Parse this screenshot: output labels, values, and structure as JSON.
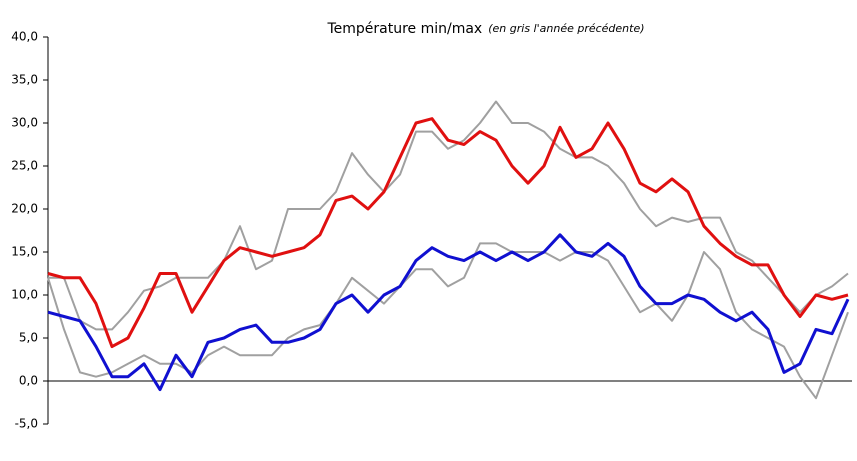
{
  "chart_data": {
    "type": "line",
    "title": "Température min/max",
    "subtitle": "(en gris l'année précédente)",
    "categories": [
      null,
      null,
      null,
      null,
      null,
      null,
      null,
      null,
      null,
      null,
      null,
      null,
      null,
      null,
      null,
      null,
      null,
      null,
      null,
      null,
      null,
      null,
      null,
      null,
      null,
      null,
      null,
      null,
      null,
      null,
      null,
      null,
      null,
      null,
      null,
      null,
      null,
      null,
      null,
      null,
      null,
      null,
      null,
      null,
      null,
      null,
      null,
      null,
      null,
      null,
      null
    ],
    "ylim": [
      -5,
      40
    ],
    "yticks": [
      {
        "value": -5,
        "label": "-5,0"
      },
      {
        "value": 0,
        "label": "0,0"
      },
      {
        "value": 5,
        "label": "5,0"
      },
      {
        "value": 10,
        "label": "10,0"
      },
      {
        "value": 15,
        "label": "15,0"
      },
      {
        "value": 20,
        "label": "20,0"
      },
      {
        "value": 25,
        "label": "25,0"
      },
      {
        "value": 30,
        "label": "30,0"
      },
      {
        "value": 35,
        "label": "35,0"
      },
      {
        "value": 40,
        "label": "40,0"
      }
    ],
    "series": [
      {
        "color": "#a0a0a0",
        "values": [
          12,
          12,
          7,
          6,
          6,
          8,
          10.5,
          11,
          12,
          12,
          12,
          14,
          18,
          13,
          14,
          20,
          20,
          20,
          22,
          26.5,
          24,
          22,
          24,
          29,
          29,
          27,
          28,
          30,
          32.5,
          30,
          30,
          29,
          27,
          26,
          26,
          25,
          23,
          20,
          18,
          19,
          18.5,
          19,
          19,
          15,
          14,
          12,
          10,
          8,
          10,
          11,
          12.5
        ]
      },
      {
        "color": "#a0a0a0",
        "values": [
          12,
          6,
          1,
          0.5,
          1,
          2,
          3,
          2,
          2,
          1,
          3,
          4,
          3,
          3,
          3,
          5,
          6,
          6.5,
          9,
          12,
          10.5,
          9,
          11,
          13,
          13,
          11,
          12,
          16,
          16,
          15,
          15,
          15,
          14,
          15,
          15,
          14,
          11,
          8,
          9,
          7,
          10,
          15,
          13,
          8,
          6,
          5,
          4,
          0.5,
          -2,
          3,
          8
        ]
      },
      {
        "color": "#e01010",
        "values": [
          12.5,
          12,
          12,
          9,
          4,
          5,
          8.5,
          12.5,
          12.5,
          8,
          11,
          14,
          15.5,
          15,
          14.5,
          15,
          15.5,
          17,
          21,
          21.5,
          20,
          22,
          26,
          30,
          30.5,
          28,
          27.5,
          29,
          28,
          25,
          23,
          25,
          29.5,
          26,
          27,
          30,
          27,
          23,
          22,
          23.5,
          22,
          18,
          16,
          14.5,
          13.5,
          13.5,
          10,
          7.5,
          10,
          9.5,
          10
        ]
      },
      {
        "color": "#1010d0",
        "values": [
          8,
          7.5,
          7,
          4,
          0.5,
          0.5,
          2,
          -1,
          3,
          0.5,
          4.5,
          5,
          6,
          6.5,
          4.5,
          4.5,
          5,
          6,
          9,
          10,
          8,
          10,
          11,
          14,
          15.5,
          14.5,
          14,
          15,
          14,
          15,
          14,
          15,
          17,
          15,
          14.5,
          16,
          14.5,
          11,
          9,
          9,
          10,
          9.5,
          8,
          7,
          8,
          6,
          1,
          2,
          6,
          5.5,
          9.5
        ]
      }
    ]
  }
}
